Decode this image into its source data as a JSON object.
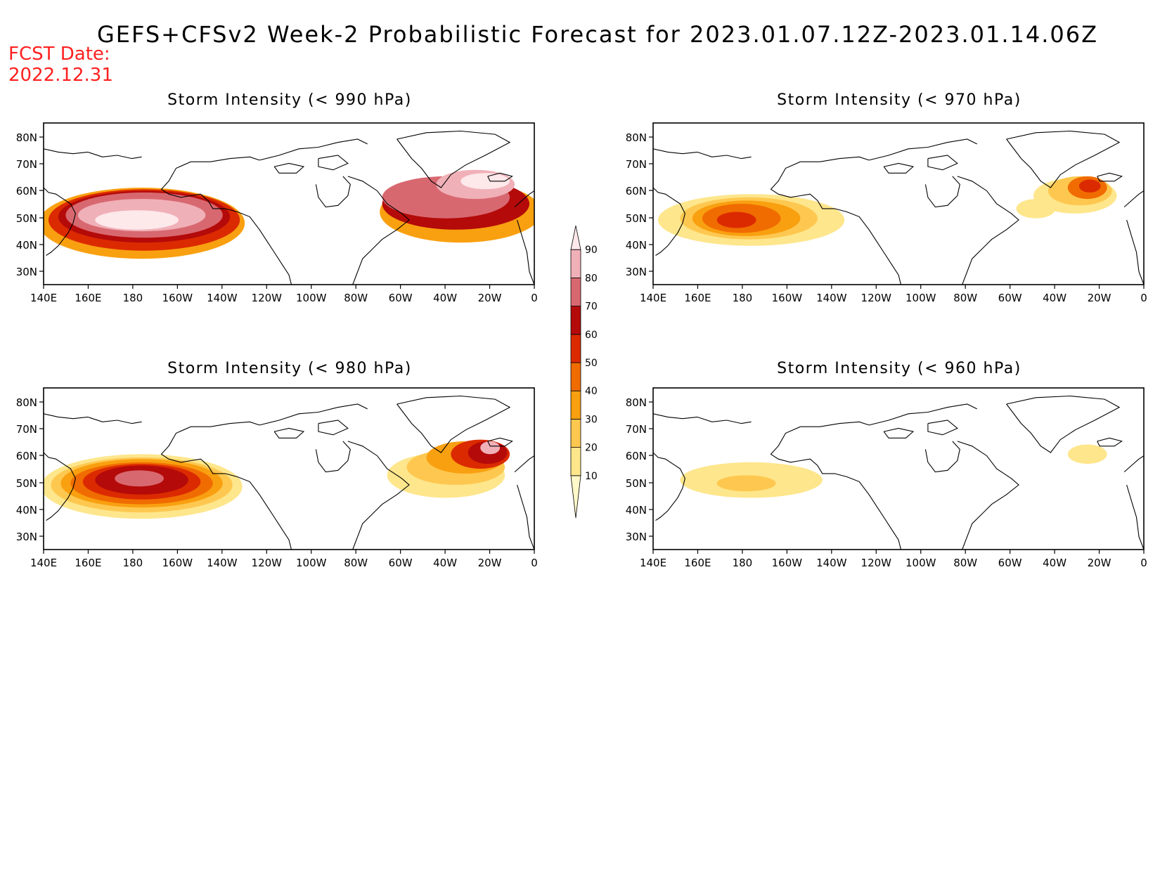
{
  "title": "GEFS+CFSv2 Week-2 Probabilistic Forecast for 2023.01.07.12Z-2023.01.14.06Z",
  "fcst_label": "FCST Date:",
  "fcst_date": "2022.12.31",
  "colorbar": {
    "levels": [
      "10",
      "20",
      "30",
      "40",
      "50",
      "60",
      "70",
      "80",
      "90"
    ],
    "colors": [
      "#fff8c8",
      "#fee68c",
      "#fec850",
      "#f9a010",
      "#f06c00",
      "#dc2a00",
      "#b40a0a",
      "#d86870",
      "#f0b0b8",
      "#fde8ea"
    ]
  },
  "axes": {
    "x_ticks": [
      "140E",
      "160E",
      "180",
      "160W",
      "140W",
      "120W",
      "100W",
      "80W",
      "60W",
      "40W",
      "20W",
      "0"
    ],
    "y_ticks": [
      "80N",
      "70N",
      "60N",
      "50N",
      "40N",
      "30N"
    ]
  },
  "panels": [
    {
      "title": "Storm Intensity (< 990 hPa)"
    },
    {
      "title": "Storm Intensity (< 970 hPa)"
    },
    {
      "title": "Storm Intensity (< 980 hPa)"
    },
    {
      "title": "Storm Intensity (< 960 hPa)"
    }
  ]
}
